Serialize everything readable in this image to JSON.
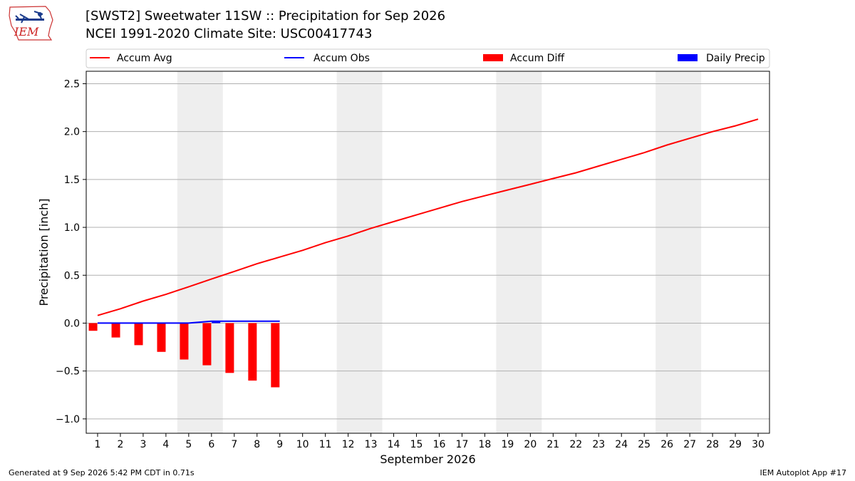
{
  "header": {
    "title_line1": "[SWST2] Sweetwater 11SW :: Precipitation for Sep 2026",
    "title_line2": "NCEI 1991-2020 Climate Site: USC00417743",
    "logo_text": "IEM"
  },
  "footer": {
    "generated": "Generated at 9 Sep 2026 5:42 PM CDT in 0.71s",
    "app": "IEM Autoplot App #17"
  },
  "chart_data": {
    "type": "line",
    "xlabel": "September 2026",
    "ylabel": "Precipitation [inch]",
    "ylim": [
      -1.15,
      2.63
    ],
    "xlim": [
      0.5,
      30.5
    ],
    "yticks": [
      -1.0,
      -0.5,
      0.0,
      0.5,
      1.0,
      1.5,
      2.0,
      2.5
    ],
    "ytick_labels": [
      "−1.0",
      "−0.5",
      "0.0",
      "0.5",
      "1.0",
      "1.5",
      "2.0",
      "2.5"
    ],
    "x": [
      1,
      2,
      3,
      4,
      5,
      6,
      7,
      8,
      9,
      10,
      11,
      12,
      13,
      14,
      15,
      16,
      17,
      18,
      19,
      20,
      21,
      22,
      23,
      24,
      25,
      26,
      27,
      28,
      29,
      30
    ],
    "grid": "y",
    "legend_position": "top",
    "weekend_shading": [
      [
        4.5,
        6.5
      ],
      [
        11.5,
        13.5
      ],
      [
        18.5,
        20.5
      ],
      [
        25.5,
        27.5
      ]
    ],
    "series": [
      {
        "name": "Accum Avg",
        "kind": "line",
        "color": "#ff0000",
        "x": [
          1,
          2,
          3,
          4,
          5,
          6,
          7,
          8,
          9,
          10,
          11,
          12,
          13,
          14,
          15,
          16,
          17,
          18,
          19,
          20,
          21,
          22,
          23,
          24,
          25,
          26,
          27,
          28,
          29,
          30
        ],
        "values": [
          0.08,
          0.15,
          0.23,
          0.3,
          0.38,
          0.46,
          0.54,
          0.62,
          0.69,
          0.76,
          0.84,
          0.91,
          0.99,
          1.06,
          1.13,
          1.2,
          1.27,
          1.33,
          1.39,
          1.45,
          1.51,
          1.57,
          1.64,
          1.71,
          1.78,
          1.86,
          1.93,
          2.0,
          2.06,
          2.13
        ]
      },
      {
        "name": "Accum Obs",
        "kind": "line",
        "color": "#0000ff",
        "x": [
          1,
          2,
          3,
          4,
          5,
          6,
          7,
          8,
          9
        ],
        "values": [
          0.0,
          0.0,
          0.0,
          0.0,
          0.0,
          0.02,
          0.02,
          0.02,
          0.02
        ]
      },
      {
        "name": "Accum Diff",
        "kind": "bar",
        "color": "#ff0000",
        "bar_offset": -0.2,
        "x": [
          1,
          2,
          3,
          4,
          5,
          6,
          7,
          8,
          9
        ],
        "values": [
          -0.08,
          -0.15,
          -0.23,
          -0.3,
          -0.38,
          -0.44,
          -0.52,
          -0.6,
          -0.67
        ]
      },
      {
        "name": "Daily Precip",
        "kind": "bar",
        "color": "#0000ff",
        "bar_offset": 0.2,
        "x": [
          1,
          2,
          3,
          4,
          5,
          6,
          7,
          8,
          9
        ],
        "values": [
          0,
          0,
          0,
          0,
          0,
          0.02,
          0,
          0,
          0
        ]
      }
    ]
  }
}
